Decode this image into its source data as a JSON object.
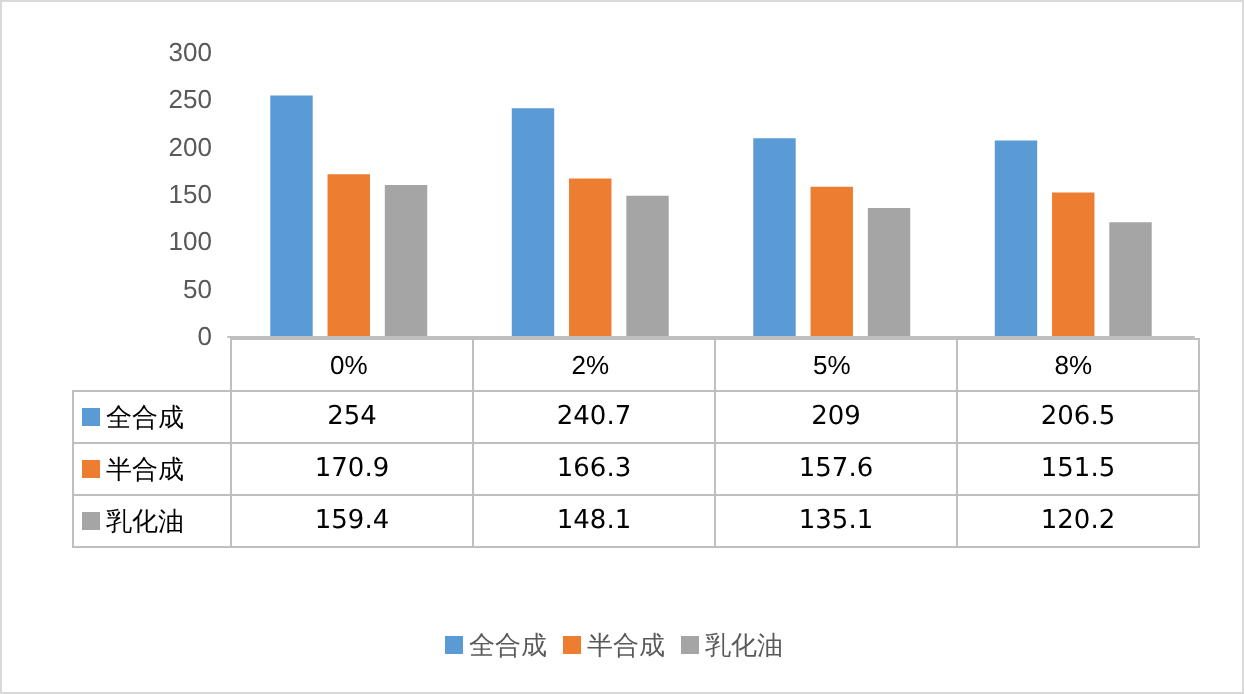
{
  "chart_data": {
    "type": "bar",
    "categories": [
      "0%",
      "2%",
      "5%",
      "8%"
    ],
    "series": [
      {
        "name": "全合成",
        "color": "#5b9bd5",
        "values": [
          254,
          240.7,
          209,
          206.5
        ]
      },
      {
        "name": "半合成",
        "color": "#ed7d31",
        "values": [
          170.9,
          166.3,
          157.6,
          151.5
        ]
      },
      {
        "name": "乳化油",
        "color": "#a5a5a5",
        "values": [
          159.4,
          148.1,
          135.1,
          120.2
        ]
      }
    ],
    "ylim": [
      0,
      300
    ],
    "yticks": [
      0,
      50,
      100,
      150,
      200,
      250,
      300
    ],
    "grid": false,
    "legend": "bottom",
    "data_labels": true
  }
}
